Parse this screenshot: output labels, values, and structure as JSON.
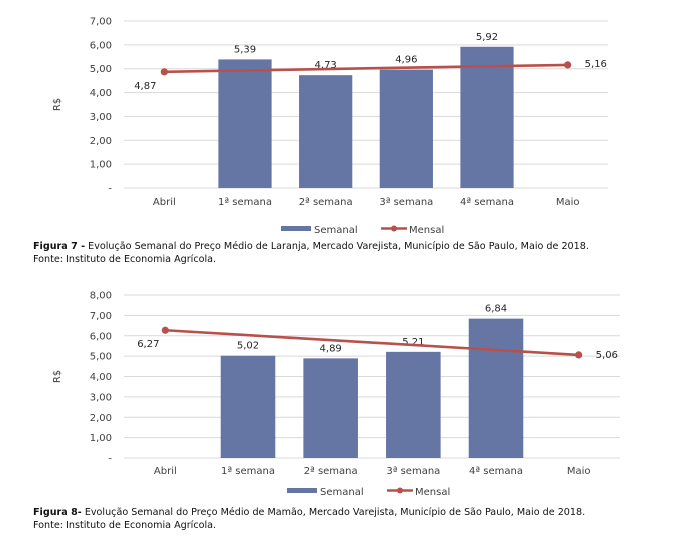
{
  "chart_data": [
    {
      "type": "bar",
      "categories": [
        "Abril",
        "1ª semana",
        "2ª semana",
        "3ª semana",
        "4ª semana",
        "Maio"
      ],
      "series": [
        {
          "name": "Semanal",
          "type": "bar",
          "values": [
            null,
            5.39,
            4.73,
            4.96,
            5.92,
            null
          ],
          "labels": [
            "",
            "5,39",
            "4,73",
            "4,96",
            "5,92",
            ""
          ]
        },
        {
          "name": "Mensal",
          "type": "line",
          "values": [
            4.87,
            null,
            null,
            null,
            null,
            5.16
          ],
          "labels": [
            "4,87",
            "",
            "",
            "",
            "",
            "5,16"
          ]
        }
      ],
      "ylabel": "R$",
      "ylim": [
        0,
        7
      ],
      "yticks": [
        "-",
        "1,00",
        "2,00",
        "3,00",
        "4,00",
        "5,00",
        "6,00",
        "7,00"
      ],
      "legend_position": "bottom",
      "grid": true,
      "colors": {
        "bar": "#6676a4",
        "line": "#b8504b"
      },
      "caption_bold": "Figura 7 -",
      "caption": "Evolução Semanal do Preço Médio de Laranja, Mercado Varejista, Município de São Paulo, Maio de 2018.",
      "source": "Fonte: Instituto de Economia Agrícola."
    },
    {
      "type": "bar",
      "categories": [
        "Abril",
        "1ª semana",
        "2ª semana",
        "3ª semana",
        "4ª semana",
        "Maio"
      ],
      "series": [
        {
          "name": "Semanal",
          "type": "bar",
          "values": [
            null,
            5.02,
            4.89,
            5.21,
            6.84,
            null
          ],
          "labels": [
            "",
            "5,02",
            "4,89",
            "5,21",
            "6,84",
            ""
          ]
        },
        {
          "name": "Mensal",
          "type": "line",
          "values": [
            6.27,
            null,
            null,
            null,
            null,
            5.06
          ],
          "labels": [
            "6,27",
            "",
            "",
            "",
            "",
            "5,06"
          ]
        }
      ],
      "ylabel": "R$",
      "ylim": [
        0,
        8
      ],
      "yticks": [
        "-",
        "1,00",
        "2,00",
        "3,00",
        "4,00",
        "5,00",
        "6,00",
        "7,00",
        "8,00"
      ],
      "legend_position": "bottom",
      "grid": true,
      "colors": {
        "bar": "#6676a4",
        "line": "#b8504b"
      },
      "caption_bold": "Figura 8-",
      "caption": "Evolução Semanal do Preço Médio de Mamão, Mercado Varejista, Município de São Paulo, Maio de 2018.",
      "source": "Fonte: Instituto de Economia Agrícola."
    }
  ]
}
